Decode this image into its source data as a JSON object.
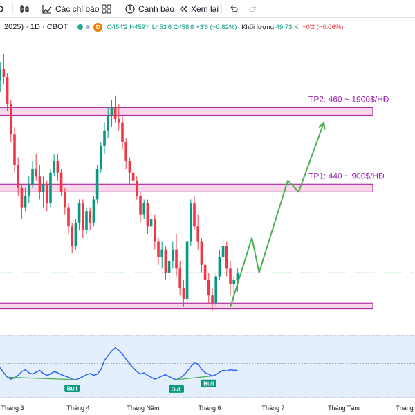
{
  "toolbar": {
    "indicators_label": "Các chỉ báo",
    "alerts_label": "Cảnh báo",
    "replay_label": "Xem lại",
    "icons": [
      "bar-style-icon",
      "indicators-icon",
      "layout-grid-icon",
      "alert-clock-icon",
      "replay-icon",
      "undo-icon",
      "redo-icon"
    ]
  },
  "legend": {
    "symbol": "2025) · 1D · CBOT",
    "badge": "D",
    "open": "O454'2",
    "high": "H459'4",
    "low": "L453'6",
    "close": "C458'6",
    "change": "+3'6 (+0.82%)",
    "volume_label": "Khối lượng",
    "volume_value": "49.73 K",
    "volume_change": "−0'2 (−0.06%)",
    "colors": {
      "up": "#089981",
      "down": "#f23645",
      "dot1": "#22ab94",
      "dot2": "#b2b5be",
      "badge": "#f57c00"
    }
  },
  "chart_data": {
    "type": "candlestick",
    "time_axis_labels": [
      "Tháng 3",
      "Tháng 4",
      "Tháng Năm",
      "Tháng 6",
      "Tháng 7",
      "Tháng Tám",
      "Tháng"
    ],
    "candles": [
      {
        "o": 470,
        "h": 474,
        "l": 466,
        "c": 468
      },
      {
        "o": 468,
        "h": 473,
        "l": 465,
        "c": 471
      },
      {
        "o": 471,
        "h": 475,
        "l": 467,
        "c": 469
      },
      {
        "o": 469,
        "h": 470,
        "l": 460,
        "c": 462
      },
      {
        "o": 462,
        "h": 463,
        "l": 452,
        "c": 454
      },
      {
        "o": 454,
        "h": 456,
        "l": 444,
        "c": 446
      },
      {
        "o": 446,
        "h": 448,
        "l": 438,
        "c": 440
      },
      {
        "o": 440,
        "h": 441,
        "l": 432,
        "c": 435
      },
      {
        "o": 435,
        "h": 440,
        "l": 434,
        "c": 438
      },
      {
        "o": 438,
        "h": 443,
        "l": 436,
        "c": 441
      },
      {
        "o": 441,
        "h": 447,
        "l": 440,
        "c": 445
      },
      {
        "o": 445,
        "h": 449,
        "l": 442,
        "c": 443
      },
      {
        "o": 443,
        "h": 446,
        "l": 437,
        "c": 439
      },
      {
        "o": 439,
        "h": 443,
        "l": 435,
        "c": 441
      },
      {
        "o": 441,
        "h": 442,
        "l": 434,
        "c": 436
      },
      {
        "o": 436,
        "h": 445,
        "l": 435,
        "c": 444
      },
      {
        "o": 444,
        "h": 449,
        "l": 443,
        "c": 447
      },
      {
        "o": 447,
        "h": 449,
        "l": 442,
        "c": 444
      },
      {
        "o": 444,
        "h": 445,
        "l": 438,
        "c": 439
      },
      {
        "o": 439,
        "h": 440,
        "l": 433,
        "c": 435
      },
      {
        "o": 435,
        "h": 436,
        "l": 428,
        "c": 430
      },
      {
        "o": 430,
        "h": 431,
        "l": 423,
        "c": 425
      },
      {
        "o": 425,
        "h": 432,
        "l": 424,
        "c": 431
      },
      {
        "o": 431,
        "h": 437,
        "l": 429,
        "c": 436
      },
      {
        "o": 436,
        "h": 437,
        "l": 427,
        "c": 429
      },
      {
        "o": 429,
        "h": 435,
        "l": 428,
        "c": 434
      },
      {
        "o": 434,
        "h": 435,
        "l": 429,
        "c": 431
      },
      {
        "o": 431,
        "h": 438,
        "l": 430,
        "c": 437
      },
      {
        "o": 437,
        "h": 446,
        "l": 436,
        "c": 445
      },
      {
        "o": 445,
        "h": 452,
        "l": 444,
        "c": 451
      },
      {
        "o": 451,
        "h": 457,
        "l": 449,
        "c": 455
      },
      {
        "o": 455,
        "h": 461,
        "l": 453,
        "c": 459
      },
      {
        "o": 459,
        "h": 463,
        "l": 456,
        "c": 461
      },
      {
        "o": 461,
        "h": 464,
        "l": 457,
        "c": 458
      },
      {
        "o": 458,
        "h": 462,
        "l": 455,
        "c": 457
      },
      {
        "o": 457,
        "h": 459,
        "l": 450,
        "c": 452
      },
      {
        "o": 452,
        "h": 453,
        "l": 445,
        "c": 447
      },
      {
        "o": 447,
        "h": 448,
        "l": 441,
        "c": 444
      },
      {
        "o": 444,
        "h": 446,
        "l": 440,
        "c": 442
      },
      {
        "o": 442,
        "h": 443,
        "l": 437,
        "c": 438
      },
      {
        "o": 438,
        "h": 439,
        "l": 431,
        "c": 433
      },
      {
        "o": 433,
        "h": 437,
        "l": 432,
        "c": 436
      },
      {
        "o": 436,
        "h": 437,
        "l": 428,
        "c": 430
      },
      {
        "o": 430,
        "h": 434,
        "l": 427,
        "c": 432
      },
      {
        "o": 432,
        "h": 433,
        "l": 424,
        "c": 426
      },
      {
        "o": 426,
        "h": 427,
        "l": 420,
        "c": 422
      },
      {
        "o": 422,
        "h": 426,
        "l": 419,
        "c": 424
      },
      {
        "o": 424,
        "h": 425,
        "l": 416,
        "c": 418
      },
      {
        "o": 418,
        "h": 422,
        "l": 416,
        "c": 421
      },
      {
        "o": 421,
        "h": 426,
        "l": 419,
        "c": 424
      },
      {
        "o": 424,
        "h": 428,
        "l": 417,
        "c": 419
      },
      {
        "o": 419,
        "h": 421,
        "l": 412,
        "c": 414
      },
      {
        "o": 414,
        "h": 416,
        "l": 409,
        "c": 411
      },
      {
        "o": 411,
        "h": 427,
        "l": 410,
        "c": 426
      },
      {
        "o": 426,
        "h": 437,
        "l": 425,
        "c": 436
      },
      {
        "o": 436,
        "h": 438,
        "l": 429,
        "c": 430
      },
      {
        "o": 430,
        "h": 433,
        "l": 424,
        "c": 426
      },
      {
        "o": 426,
        "h": 427,
        "l": 418,
        "c": 420
      },
      {
        "o": 420,
        "h": 422,
        "l": 414,
        "c": 416
      },
      {
        "o": 416,
        "h": 418,
        "l": 410,
        "c": 412
      },
      {
        "o": 412,
        "h": 414,
        "l": 408,
        "c": 410
      },
      {
        "o": 410,
        "h": 418,
        "l": 409,
        "c": 417
      },
      {
        "o": 417,
        "h": 424,
        "l": 416,
        "c": 422
      },
      {
        "o": 422,
        "h": 427,
        "l": 420,
        "c": 425
      },
      {
        "o": 425,
        "h": 426,
        "l": 417,
        "c": 419
      },
      {
        "o": 419,
        "h": 421,
        "l": 412,
        "c": 415
      },
      {
        "o": 415,
        "h": 417,
        "l": 410,
        "c": 416
      },
      {
        "o": 416,
        "h": 419,
        "l": 413,
        "c": 418
      }
    ],
    "zones": [
      {
        "label": "TP2: 460 ~ 1900$/HĐ",
        "top": 461,
        "bottom": 459
      },
      {
        "label": "TP1: 440 ~ 900$/HĐ",
        "top": 441,
        "bottom": 439
      },
      {
        "label": "",
        "top": 410,
        "bottom": 408.5
      }
    ],
    "projection_path": [
      {
        "bar": 65,
        "price": 409
      },
      {
        "bar": 71,
        "price": 427
      },
      {
        "bar": 73,
        "price": 418
      },
      {
        "bar": 81,
        "price": 442
      },
      {
        "bar": 84,
        "price": 439
      },
      {
        "bar": 91,
        "price": 457
      }
    ],
    "price_range": [
      405,
      480
    ],
    "oscillator": {
      "values": [
        55,
        48,
        40,
        33,
        30,
        32,
        36,
        42,
        45,
        40,
        38,
        41,
        44,
        39,
        36,
        38,
        42,
        40,
        37,
        35,
        33,
        30,
        29,
        31,
        34,
        37,
        39,
        36,
        38,
        45,
        60,
        68,
        75,
        80,
        76,
        70,
        62,
        55,
        48,
        42,
        38,
        40,
        36,
        33,
        30,
        32,
        35,
        37,
        34,
        31,
        29,
        32,
        36,
        42,
        50,
        56,
        54,
        46,
        40,
        38,
        35,
        37,
        41,
        44,
        43,
        45,
        44,
        44
      ],
      "range": [
        0,
        100
      ],
      "bull_labels": [
        "Bull",
        "Bull",
        "Bull"
      ],
      "colors": {
        "line": "#2962ff",
        "bull_label": "#089981",
        "band": "#e3effd"
      }
    },
    "colors": {
      "up": "#089981",
      "down": "#f23645",
      "zone_fill": "#f8d7ea",
      "zone_stroke": "#b030a0",
      "projection": "#4caf50",
      "label": "#9c27b0"
    }
  }
}
